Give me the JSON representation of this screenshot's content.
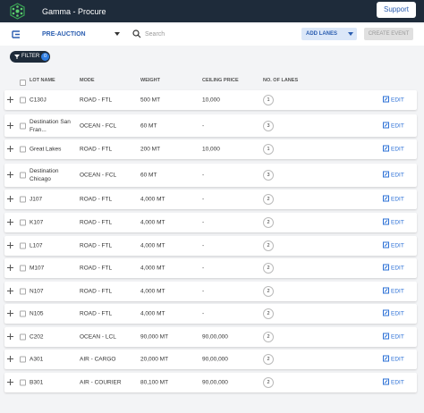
{
  "header": {
    "app_name": "Gamma - Procure",
    "support": "Support"
  },
  "toolbar": {
    "stage": "PRE-AUCTION",
    "search_placeholder": "Search",
    "add_lanes": "ADD LANES",
    "create_event": "CREATE EVENT"
  },
  "filter": {
    "label": "FILTER",
    "count": 0
  },
  "table": {
    "columns": [
      "LOT NAME",
      "MODE",
      "WEIGHT",
      "CEILING PRICE",
      "NO. OF LANES"
    ],
    "rows": [
      {
        "lot": "C130J",
        "mode": "ROAD - FTL",
        "weight": "500 MT",
        "ceiling": "10,000",
        "lanes": 1,
        "action": "EDIT"
      },
      {
        "lot": "Destination San Fran...",
        "mode": "OCEAN - FCL",
        "weight": "60 MT",
        "ceiling": "-",
        "lanes": 3,
        "action": "EDIT"
      },
      {
        "lot": "Great Lakes",
        "mode": "ROAD - FTL",
        "weight": "200 MT",
        "ceiling": "10,000",
        "lanes": 1,
        "action": "EDIT"
      },
      {
        "lot": "Destination Chicago",
        "mode": "OCEAN - FCL",
        "weight": "60 MT",
        "ceiling": "-",
        "lanes": 3,
        "action": "EDIT"
      },
      {
        "lot": "J107",
        "mode": "ROAD - FTL",
        "weight": "4,000 MT",
        "ceiling": "-",
        "lanes": 2,
        "action": "EDIT"
      },
      {
        "lot": "K107",
        "mode": "ROAD - FTL",
        "weight": "4,000 MT",
        "ceiling": "-",
        "lanes": 2,
        "action": "EDIT"
      },
      {
        "lot": "L107",
        "mode": "ROAD - FTL",
        "weight": "4,000 MT",
        "ceiling": "-",
        "lanes": 2,
        "action": "EDIT"
      },
      {
        "lot": "M107",
        "mode": "ROAD - FTL",
        "weight": "4,000 MT",
        "ceiling": "-",
        "lanes": 2,
        "action": "EDIT"
      },
      {
        "lot": "N107",
        "mode": "ROAD - FTL",
        "weight": "4,000 MT",
        "ceiling": "-",
        "lanes": 2,
        "action": "EDIT"
      },
      {
        "lot": "N105",
        "mode": "ROAD - FTL",
        "weight": "4,000 MT",
        "ceiling": "-",
        "lanes": 2,
        "action": "EDIT"
      },
      {
        "lot": "C202",
        "mode": "OCEAN - LCL",
        "weight": "90,000 MT",
        "ceiling": "90,00,000",
        "lanes": 2,
        "action": "EDIT"
      },
      {
        "lot": "A301",
        "mode": "AIR - CARGO",
        "weight": "20,000 MT",
        "ceiling": "90,00,000",
        "lanes": 2,
        "action": "EDIT"
      },
      {
        "lot": "B301",
        "mode": "AIR - COURIER",
        "weight": "80,100 MT",
        "ceiling": "90,00,000",
        "lanes": 2,
        "action": "EDIT"
      }
    ]
  }
}
